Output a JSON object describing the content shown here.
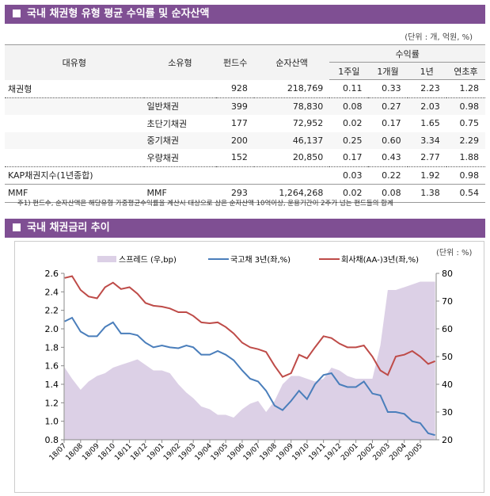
{
  "section1": {
    "title": "국내 채권형 유형 평균 수익률 및 순자산액",
    "unit": "(단위 : 개, 억원, %)"
  },
  "table": {
    "headers": {
      "major": "대유형",
      "minor": "소유형",
      "funds": "펀드수",
      "assets": "순자산액",
      "returns": "수익률",
      "w1": "1주일",
      "m1": "1개월",
      "y1": "1년",
      "ytd": "연초후"
    },
    "rows": [
      [
        "채권형",
        "",
        "928",
        "218,769",
        "0.11",
        "0.33",
        "2.23",
        "1.28"
      ],
      [
        "",
        "일반채권",
        "399",
        "78,830",
        "0.08",
        "0.27",
        "2.03",
        "0.98"
      ],
      [
        "",
        "초단기채권",
        "177",
        "72,952",
        "0.02",
        "0.17",
        "1.65",
        "0.75"
      ],
      [
        "",
        "중기채권",
        "200",
        "46,137",
        "0.25",
        "0.60",
        "3.34",
        "2.29"
      ],
      [
        "",
        "우량채권",
        "152",
        "20,850",
        "0.17",
        "0.43",
        "2.77",
        "1.88"
      ],
      [
        "KAP채권지수(1년종합)",
        "",
        "",
        "",
        "0.03",
        "0.22",
        "1.92",
        "0.98"
      ],
      [
        "MMF",
        "MMF",
        "293",
        "1,264,268",
        "0.02",
        "0.08",
        "1.38",
        "0.54"
      ]
    ]
  },
  "note": "주1) 펀드수, 순자산액은 해당유형 가중평균수익률을 계산시 대상으로 삼은 순자산액 10억이상, 운용기간이 2주가 넘는 펀드들의 합계",
  "section2": {
    "title": "국내 채권금리 추이",
    "unit": "(단위 : %)"
  },
  "chart_data": {
    "type": "line",
    "xticks": [
      "18/07",
      "18/08",
      "18/09",
      "18/10",
      "18/11",
      "18/12",
      "19/01",
      "19/02",
      "19/03",
      "19/04",
      "19/05",
      "19/06",
      "19/07",
      "19/08",
      "19/09",
      "19/10",
      "19/11",
      "19/12",
      "20/01",
      "20/02",
      "20/03",
      "20/04",
      "20/05"
    ],
    "y_left": {
      "range": [
        0.8,
        2.6
      ],
      "ticks": [
        "0.8",
        "1.0",
        "1.2",
        "1.4",
        "1.6",
        "1.8",
        "2.0",
        "2.2",
        "2.4",
        "2.6"
      ]
    },
    "y_right": {
      "range": [
        20,
        80
      ],
      "ticks": [
        "20",
        "30",
        "40",
        "50",
        "60",
        "70",
        "80"
      ]
    },
    "legend_position": "top",
    "x": [
      "2018-07-02",
      "2018-07-16",
      "2018-08-01",
      "2018-08-16",
      "2018-09-01",
      "2018-09-16",
      "2018-10-01",
      "2018-10-16",
      "2018-11-01",
      "2018-11-16",
      "2018-12-01",
      "2018-12-16",
      "2019-01-01",
      "2019-01-16",
      "2019-02-01",
      "2019-02-16",
      "2019-03-01",
      "2019-03-16",
      "2019-04-01",
      "2019-04-16",
      "2019-05-01",
      "2019-05-16",
      "2019-06-01",
      "2019-06-16",
      "2019-07-01",
      "2019-07-16",
      "2019-08-01",
      "2019-08-16",
      "2019-09-01",
      "2019-09-16",
      "2019-10-01",
      "2019-10-16",
      "2019-11-01",
      "2019-11-16",
      "2019-12-01",
      "2019-12-16",
      "2020-01-01",
      "2020-01-16",
      "2020-02-01",
      "2020-02-16",
      "2020-03-01",
      "2020-03-16",
      "2020-04-01",
      "2020-04-16",
      "2020-05-01",
      "2020-05-16",
      "2020-05-29"
    ],
    "series": [
      {
        "name": "스프레드 (우,bp)",
        "axis": "right",
        "kind": "area",
        "color": "#dcd0e6",
        "values": [
          46,
          42,
          38,
          41,
          43,
          44,
          46,
          47,
          48,
          49,
          47,
          45,
          45,
          44,
          40,
          37,
          35,
          32,
          31,
          29,
          29,
          28,
          31,
          33,
          34,
          30,
          34,
          40,
          43,
          43,
          42,
          41,
          42,
          46,
          45,
          43,
          42,
          42,
          42,
          54,
          74,
          74,
          75,
          76,
          77,
          77,
          77
        ]
      },
      {
        "name": "국고채 3년(좌,%)",
        "axis": "left",
        "kind": "line",
        "color": "#4a7ebb",
        "values": [
          2.08,
          2.12,
          1.97,
          1.92,
          1.92,
          2.02,
          2.07,
          1.95,
          1.95,
          1.93,
          1.85,
          1.8,
          1.82,
          1.8,
          1.79,
          1.82,
          1.8,
          1.72,
          1.72,
          1.76,
          1.72,
          1.66,
          1.55,
          1.46,
          1.43,
          1.33,
          1.17,
          1.12,
          1.22,
          1.33,
          1.24,
          1.4,
          1.5,
          1.52,
          1.4,
          1.37,
          1.37,
          1.43,
          1.3,
          1.28,
          1.1,
          1.1,
          1.08,
          1.0,
          0.98,
          0.87,
          0.85
        ]
      },
      {
        "name": "회사채(AA-)3년(좌,%)",
        "axis": "left",
        "kind": "line",
        "color": "#be4b48",
        "values": [
          2.55,
          2.57,
          2.42,
          2.35,
          2.33,
          2.45,
          2.5,
          2.43,
          2.45,
          2.38,
          2.28,
          2.25,
          2.24,
          2.22,
          2.18,
          2.18,
          2.14,
          2.07,
          2.06,
          2.07,
          2.02,
          1.95,
          1.85,
          1.8,
          1.78,
          1.75,
          1.6,
          1.48,
          1.52,
          1.72,
          1.68,
          1.8,
          1.92,
          1.9,
          1.84,
          1.8,
          1.8,
          1.82,
          1.7,
          1.55,
          1.5,
          1.7,
          1.72,
          1.76,
          1.7,
          1.62,
          1.65
        ]
      }
    ]
  }
}
